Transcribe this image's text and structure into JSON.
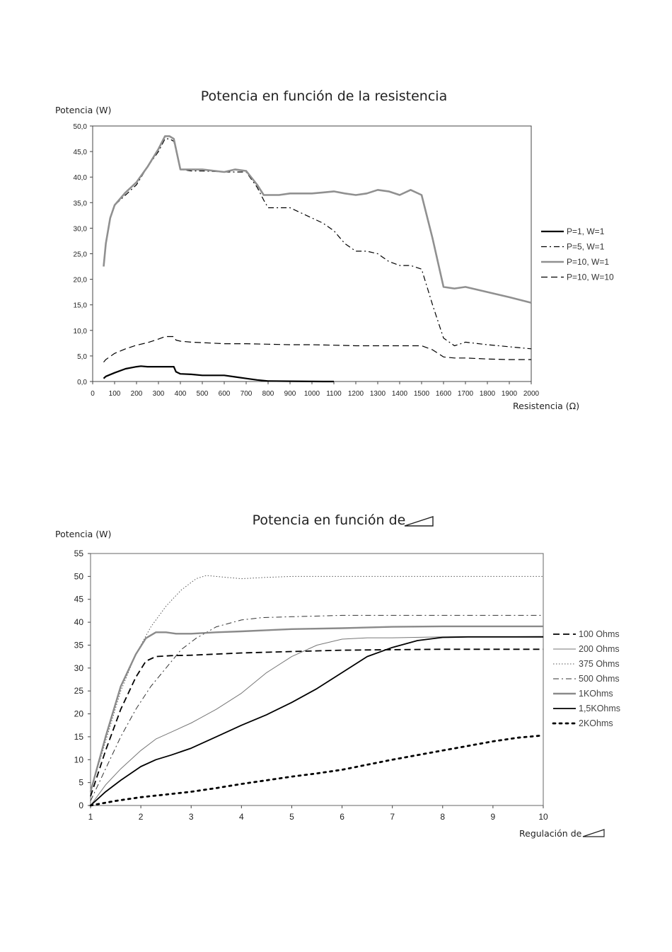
{
  "chart_data": [
    {
      "type": "line",
      "title": "Potencia en función de la resistencia",
      "ylabel": "Potencia (W)",
      "xlabel": "Resistencia (Ω)",
      "xlim": [
        0,
        2000
      ],
      "ylim": [
        0,
        50
      ],
      "xticks": [
        0,
        100,
        200,
        300,
        400,
        500,
        600,
        700,
        800,
        900,
        1000,
        1100,
        1200,
        1300,
        1400,
        1500,
        1600,
        1700,
        1800,
        1900,
        2000
      ],
      "yticks": [
        "0,0",
        "5,0",
        "10,0",
        "15,0",
        "20,0",
        "25,0",
        "30,0",
        "35,0",
        "40,0",
        "45,0",
        "50,0"
      ],
      "ytick_values": [
        0,
        5,
        10,
        15,
        20,
        25,
        30,
        35,
        40,
        45,
        50
      ],
      "grid": false,
      "legend_position": "right",
      "series": [
        {
          "name": "P=1, W=1",
          "color": "#000000",
          "style": "solid",
          "width": 2.2,
          "x": [
            50,
            60,
            100,
            150,
            200,
            220,
            250,
            300,
            350,
            370,
            380,
            400,
            450,
            500,
            600,
            650,
            700,
            750,
            800,
            900,
            1000,
            1050,
            1100
          ],
          "y": [
            0.6,
            1.0,
            1.7,
            2.5,
            2.9,
            3.0,
            2.9,
            2.9,
            2.9,
            2.9,
            1.9,
            1.5,
            1.4,
            1.2,
            1.2,
            0.9,
            0.6,
            0.3,
            0.1,
            0.05,
            0.02,
            0.0,
            0.0
          ]
        },
        {
          "name": "P=5, W=1",
          "color": "#000000",
          "style": "dashdot",
          "width": 1.2,
          "x": [
            50,
            60,
            80,
            100,
            150,
            200,
            250,
            300,
            330,
            350,
            370,
            400,
            450,
            500,
            600,
            650,
            700,
            750,
            780,
            800,
            850,
            900,
            1000,
            1050,
            1100,
            1150,
            1200,
            1250,
            1300,
            1350,
            1400,
            1450,
            1500,
            1550,
            1600,
            1650,
            1700,
            1800,
            1900,
            2000
          ],
          "y": [
            22.5,
            27,
            32,
            34.5,
            36.5,
            38.5,
            42,
            45,
            47.5,
            47.5,
            47,
            41.5,
            41.2,
            41.2,
            41,
            41,
            41,
            38,
            35.5,
            34,
            34,
            34,
            32,
            31,
            29.5,
            27,
            25.5,
            25.5,
            25,
            23.5,
            22.7,
            22.7,
            22,
            15,
            8.5,
            7,
            7.7,
            7.2,
            6.8,
            6.4
          ]
        },
        {
          "name": "P=10, W=1",
          "color": "#909090",
          "style": "solid",
          "width": 2.6,
          "x": [
            50,
            60,
            80,
            100,
            150,
            200,
            250,
            300,
            330,
            350,
            370,
            400,
            450,
            500,
            600,
            650,
            700,
            750,
            780,
            800,
            850,
            900,
            1000,
            1050,
            1100,
            1150,
            1200,
            1250,
            1300,
            1350,
            1400,
            1450,
            1500,
            1550,
            1600,
            1650,
            1700,
            1800,
            1900,
            2000
          ],
          "y": [
            22.5,
            27,
            32,
            34.5,
            37,
            39,
            42,
            45.5,
            48,
            48,
            47.5,
            41.5,
            41.5,
            41.5,
            41,
            41.5,
            41.2,
            38.5,
            36.5,
            36.5,
            36.5,
            36.8,
            36.8,
            37,
            37.2,
            36.8,
            36.5,
            36.8,
            37.5,
            37.2,
            36.5,
            37.5,
            36.5,
            28,
            18.5,
            18.2,
            18.5,
            17.5,
            16.5,
            15.4
          ]
        },
        {
          "name": "P=10, W=10",
          "color": "#000000",
          "style": "dash",
          "width": 1.2,
          "x": [
            50,
            60,
            100,
            150,
            200,
            250,
            300,
            330,
            370,
            380,
            400,
            450,
            500,
            600,
            700,
            800,
            900,
            1000,
            1100,
            1200,
            1300,
            1400,
            1500,
            1550,
            1600,
            1650,
            1700,
            1800,
            1900,
            2000
          ],
          "y": [
            3.8,
            4.3,
            5.5,
            6.4,
            7.1,
            7.6,
            8.3,
            8.8,
            8.8,
            8.1,
            7.9,
            7.7,
            7.6,
            7.4,
            7.4,
            7.3,
            7.2,
            7.2,
            7.1,
            7.0,
            7.0,
            7.0,
            7.0,
            6.2,
            4.8,
            4.6,
            4.6,
            4.4,
            4.3,
            4.3
          ]
        }
      ]
    },
    {
      "type": "line",
      "title": "Potencia en función de",
      "ylabel": "Potencia (W)",
      "xlabel": "Regulación de",
      "xlim": [
        1,
        10
      ],
      "ylim": [
        0,
        55
      ],
      "xticks": [
        1,
        2,
        3,
        4,
        5,
        6,
        7,
        8,
        9,
        10
      ],
      "yticks": [
        "0",
        "5",
        "10",
        "15",
        "20",
        "25",
        "30",
        "35",
        "40",
        "45",
        "50",
        "55"
      ],
      "ytick_values": [
        0,
        5,
        10,
        15,
        20,
        25,
        30,
        35,
        40,
        45,
        50,
        55
      ],
      "grid": false,
      "legend_position": "right",
      "series": [
        {
          "name": "100 Ohms",
          "color": "#000000",
          "style": "dash",
          "width": 1.8,
          "x": [
            1,
            1.3,
            1.6,
            1.9,
            2.1,
            2.3,
            2.6,
            3,
            4,
            5,
            6,
            7,
            8,
            9,
            10
          ],
          "y": [
            2,
            12,
            21,
            28,
            31.5,
            32.5,
            32.7,
            32.8,
            33.3,
            33.6,
            33.9,
            34,
            34.1,
            34.1,
            34.1
          ]
        },
        {
          "name": "200 Ohms",
          "color": "#777777",
          "style": "solid",
          "width": 1.0,
          "x": [
            1,
            1.3,
            1.6,
            2,
            2.3,
            2.6,
            3,
            3.5,
            4,
            4.5,
            5,
            5.5,
            6,
            6.5,
            7,
            8,
            9,
            10
          ],
          "y": [
            0,
            4.5,
            8,
            12,
            14.5,
            16,
            18,
            21,
            24.5,
            29,
            32.5,
            35,
            36.3,
            36.6,
            36.6,
            36.8,
            36.8,
            36.9
          ]
        },
        {
          "name": "375 Ohms",
          "color": "#555555",
          "style": "dot",
          "width": 1.0,
          "x": [
            1,
            1.3,
            1.6,
            1.9,
            2.2,
            2.5,
            2.8,
            3.1,
            3.3,
            3.5,
            4,
            4.5,
            5,
            6,
            7,
            8,
            9,
            10
          ],
          "y": [
            3,
            14,
            25,
            33,
            39,
            43.5,
            47,
            49.5,
            50.2,
            50,
            49.5,
            49.8,
            50,
            50,
            50,
            50,
            50,
            50
          ]
        },
        {
          "name": "500 Ohms",
          "color": "#333333",
          "style": "dashdot",
          "width": 1.0,
          "x": [
            1,
            1.3,
            1.6,
            1.9,
            2.2,
            2.5,
            2.8,
            3.1,
            3.5,
            4,
            4.4,
            5,
            6,
            7,
            8,
            9,
            10
          ],
          "y": [
            1,
            8,
            15,
            21,
            26,
            30,
            34,
            36.5,
            39,
            40.5,
            41,
            41.2,
            41.5,
            41.5,
            41.5,
            41.5,
            41.5
          ]
        },
        {
          "name": "1KOhms",
          "color": "#8a8a8a",
          "style": "solid",
          "width": 2.4,
          "x": [
            1,
            1.3,
            1.6,
            1.9,
            2.1,
            2.3,
            2.5,
            2.7,
            3,
            3.5,
            4,
            5,
            6,
            7,
            8,
            9,
            10
          ],
          "y": [
            3,
            15,
            26,
            33,
            36.5,
            37.8,
            37.8,
            37.5,
            37.5,
            37.8,
            38,
            38.5,
            38.7,
            39,
            39.1,
            39.1,
            39.1
          ]
        },
        {
          "name": "1,5KOhms",
          "color": "#000000",
          "style": "solid",
          "width": 1.8,
          "x": [
            1,
            1.3,
            1.6,
            2,
            2.3,
            2.6,
            3,
            3.5,
            4,
            4.5,
            5,
            5.5,
            6,
            6.5,
            7,
            7.5,
            8,
            8.5,
            9,
            10
          ],
          "y": [
            0,
            3,
            5.5,
            8.5,
            10,
            11,
            12.5,
            15,
            17.5,
            19.8,
            22.5,
            25.5,
            29,
            32.5,
            34.5,
            36,
            36.7,
            36.8,
            36.8,
            36.8
          ]
        },
        {
          "name": "2KOhms",
          "color": "#000000",
          "style": "bigdot",
          "width": 2.8,
          "x": [
            1,
            1.5,
            2,
            2.5,
            3,
            3.5,
            4,
            4.5,
            5,
            5.5,
            6,
            6.5,
            7,
            7.5,
            8,
            8.5,
            9,
            9.5,
            10
          ],
          "y": [
            0,
            1.0,
            1.8,
            2.4,
            3.0,
            3.8,
            4.7,
            5.5,
            6.3,
            7.0,
            7.8,
            8.9,
            10,
            11,
            12,
            13,
            14,
            14.8,
            15.3
          ]
        }
      ]
    }
  ]
}
